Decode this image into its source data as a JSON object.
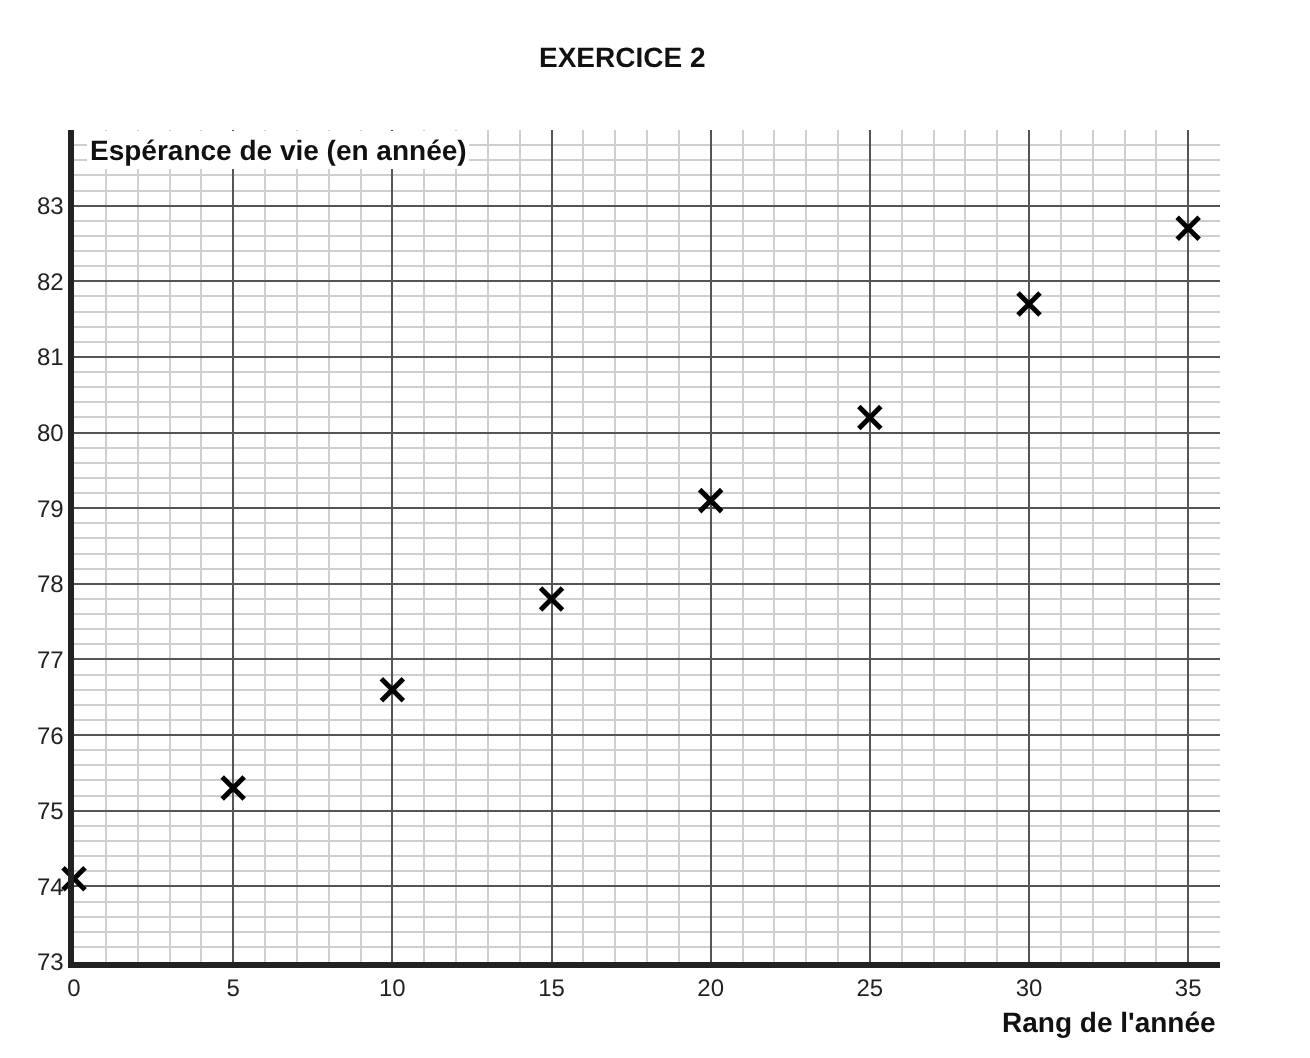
{
  "chart_data": {
    "type": "scatter",
    "title": "EXERCICE 2",
    "xlabel": "Rang de l'année",
    "ylabel": "Espérance de vie (en année)",
    "x": [
      0,
      5,
      10,
      15,
      20,
      25,
      30,
      35
    ],
    "series": [
      {
        "color": "#000000",
        "values": [
          74.1,
          75.3,
          76.6,
          77.8,
          79.1,
          80.2,
          81.7,
          82.7
        ]
      }
    ],
    "xlim": [
      0,
      36
    ],
    "ylim": [
      73,
      84
    ],
    "xticks": [
      0,
      5,
      10,
      15,
      20,
      25,
      30,
      35
    ],
    "yticks": [
      73,
      74,
      75,
      76,
      77,
      78,
      79,
      80,
      81,
      82,
      83
    ],
    "grid": true,
    "marker": "cross"
  }
}
